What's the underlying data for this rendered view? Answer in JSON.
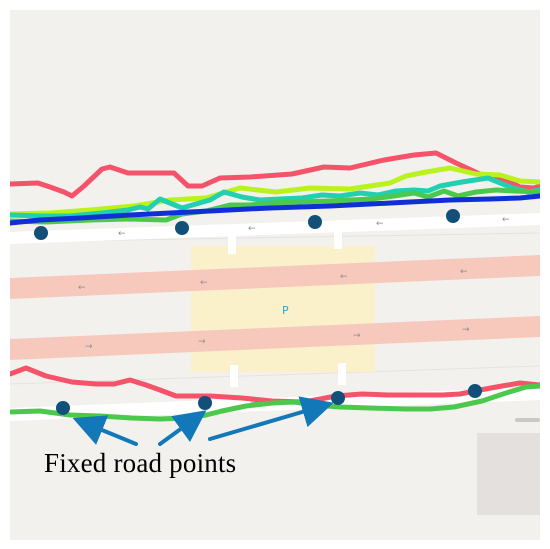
{
  "map": {
    "background_color": "#f3f1ee",
    "road_color": "#ffffff",
    "highway_color": "#f7c9bd",
    "parking_color": "#faf0c9",
    "parking_label": "P",
    "parking_label_color": "#2aa7d6",
    "building_color": "#e3e0dd"
  },
  "legend": {
    "caption": "Fixed road points",
    "caption_color": "#000000",
    "arrow_color": "#1278b8",
    "point_color": "#12507a"
  },
  "trajectories": {
    "colors": {
      "red": "#f4536a",
      "lime": "#b9f21d",
      "green": "#4cc94c",
      "teal": "#21cfb1",
      "blue": "#1030d6"
    }
  }
}
